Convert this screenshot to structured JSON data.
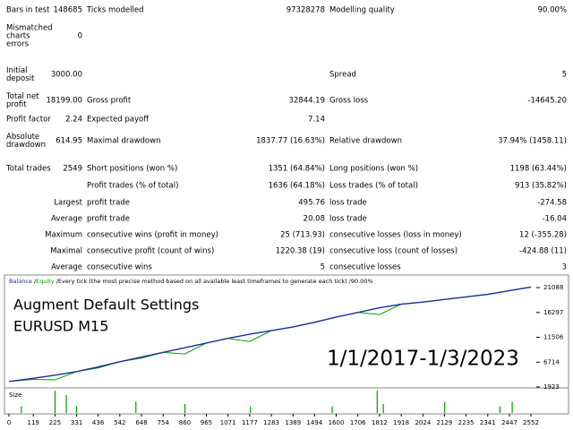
{
  "report": {
    "rows": [
      {
        "l1": "Bars in test",
        "v1": "148685",
        "l2": "Ticks modelled",
        "v2": "97328278",
        "l3": "Modelling quality",
        "v3": "90.00%"
      },
      {
        "l1": "Mismatched charts errors",
        "v1": "0"
      },
      {
        "l1": "Initial deposit",
        "v1": "3000.00",
        "l3": "Spread",
        "v3": "5"
      },
      {
        "l1": "Total net profit",
        "v1": "18199.00",
        "l2": "Gross profit",
        "v2": "32844.19",
        "l3": "Gross loss",
        "v3": "-14645.20"
      },
      {
        "l1": "Profit factor",
        "v1": "2.24",
        "l2": "Expected payoff",
        "v2": "7.14"
      },
      {
        "l1": "Absolute drawdown",
        "v1": "614.95",
        "l2": "Maximal drawdown",
        "v2": "1837.77 (16.63%)",
        "l3": "Relative drawdown",
        "v3": "37.94% (1458.11)"
      },
      {
        "l1": "Total trades",
        "v1": "2549",
        "l2": "Short positions (won %)",
        "v2": "1351 (64.84%)",
        "l3": "Long positions (won %)",
        "v3": "1198 (63.44%)"
      },
      {
        "l2": "Profit trades (% of total)",
        "v2": "1636 (64.18%)",
        "l3": "Loss trades (% of total)",
        "v3": "913 (35.82%)"
      },
      {
        "h": "Largest",
        "l2": "profit trade",
        "v2": "495.76",
        "l3": "loss trade",
        "v3": "-274.58"
      },
      {
        "h": "Average",
        "l2": "profit trade",
        "v2": "20.08",
        "l3": "loss trade",
        "v3": "-16.04"
      },
      {
        "h": "Maximum",
        "l2": "consecutive wins (profit in money)",
        "v2": "25 (713.93)",
        "l3": "consecutive losses (loss in money)",
        "v3": "12 (-355.28)"
      },
      {
        "h": "Maximal",
        "l2": "consecutive profit (count of wins)",
        "v2": "1220.38 (19)",
        "l3": "consecutive loss (count of losses)",
        "v3": "-424.88 (11)"
      },
      {
        "h": "Average",
        "l2": "consecutive wins",
        "v2": "5",
        "l3": "consecutive losses",
        "v3": "3"
      }
    ]
  },
  "chart_data": {
    "type": "line",
    "header_sep": "/",
    "header_text": "Every tick (the most precise method based on all available least timeframes to generate each tick)",
    "header_quality": "90.00%",
    "annotations": [
      "Augment Default Settings",
      "EURUSD M15",
      "1/1/2017-1/3/2023"
    ],
    "size_label": "Size",
    "x": [
      0,
      119,
      225,
      331,
      436,
      542,
      648,
      754,
      860,
      965,
      1071,
      1177,
      1283,
      1389,
      1494,
      1600,
      1706,
      1812,
      1918,
      2024,
      2129,
      2235,
      2341,
      2447,
      2552
    ],
    "series": [
      {
        "name": "Balance",
        "color": "#1c2f9c",
        "values": [
          3000,
          3600,
          4200,
          4900,
          5800,
          6800,
          7700,
          8600,
          9500,
          10400,
          11300,
          12100,
          12800,
          13500,
          14400,
          15400,
          16300,
          17200,
          17900,
          18300,
          18800,
          19300,
          19800,
          20500,
          21200
        ]
      },
      {
        "name": "Equity",
        "color": "#00a000",
        "values": [
          3000,
          3400,
          3300,
          4900,
          5600,
          6800,
          7500,
          8600,
          8300,
          10400,
          11300,
          10700,
          12800,
          13500,
          14400,
          15400,
          16300,
          15900,
          17900,
          18300,
          18800,
          19300,
          19800,
          20500,
          21200
        ]
      }
    ],
    "size": {
      "x": [
        60,
        225,
        280,
        330,
        620,
        860,
        1180,
        1580,
        1800,
        1830,
        2130,
        2400,
        2460
      ],
      "values": [
        3,
        10,
        8,
        3,
        5,
        4,
        3,
        3,
        10,
        4,
        5,
        3,
        5
      ],
      "color": "#00a000",
      "ylim": [
        0,
        10
      ]
    },
    "xlim": [
      0,
      2552
    ],
    "xticks": [
      0,
      119,
      225,
      331,
      436,
      542,
      648,
      754,
      860,
      965,
      1071,
      1177,
      1283,
      1389,
      1494,
      1600,
      1706,
      1812,
      1918,
      2024,
      2129,
      2235,
      2341,
      2447,
      2552
    ],
    "ylim": [
      1923,
      23000
    ],
    "yticks": [
      1923,
      6714,
      11506,
      16297,
      21088
    ]
  }
}
